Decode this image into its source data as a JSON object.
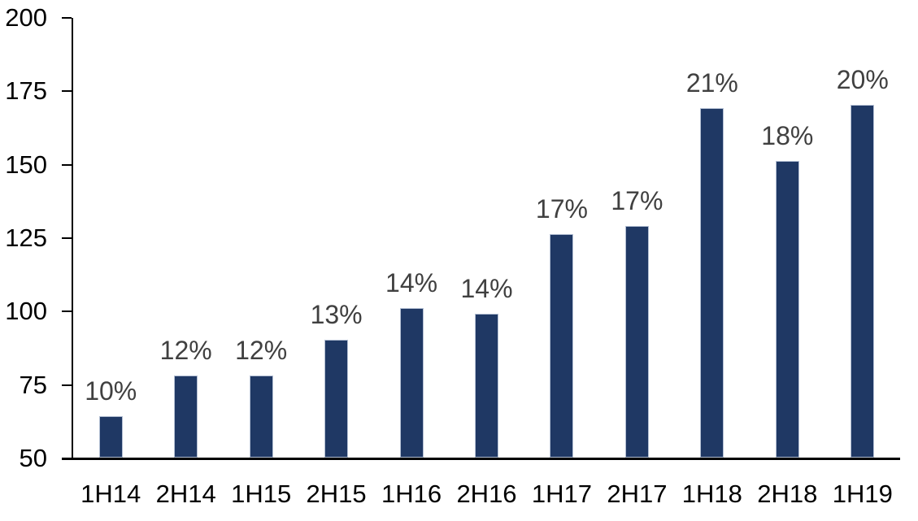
{
  "chart_data": {
    "type": "bar",
    "title": "",
    "xlabel": "",
    "ylabel": "",
    "categories": [
      "1H14",
      "2H14",
      "1H15",
      "2H15",
      "1H16",
      "2H16",
      "1H17",
      "2H17",
      "1H18",
      "2H18",
      "1H19"
    ],
    "values": [
      64,
      78,
      78,
      90,
      101,
      99,
      126,
      129,
      169,
      151,
      170
    ],
    "data_labels": [
      "10%",
      "12%",
      "12%",
      "13%",
      "14%",
      "14%",
      "17%",
      "17%",
      "21%",
      "18%",
      "20%"
    ],
    "ylim": [
      50,
      200
    ],
    "yticks": [
      50,
      75,
      100,
      125,
      150,
      175,
      200
    ],
    "grid": false,
    "legend": false,
    "colors": {
      "bar_fill": "#1F3864",
      "bar_border": "#B3BFD3",
      "data_label": "#404040",
      "axis_text": "#000000",
      "axis_line": "#000000",
      "background": "#FFFFFF"
    }
  }
}
